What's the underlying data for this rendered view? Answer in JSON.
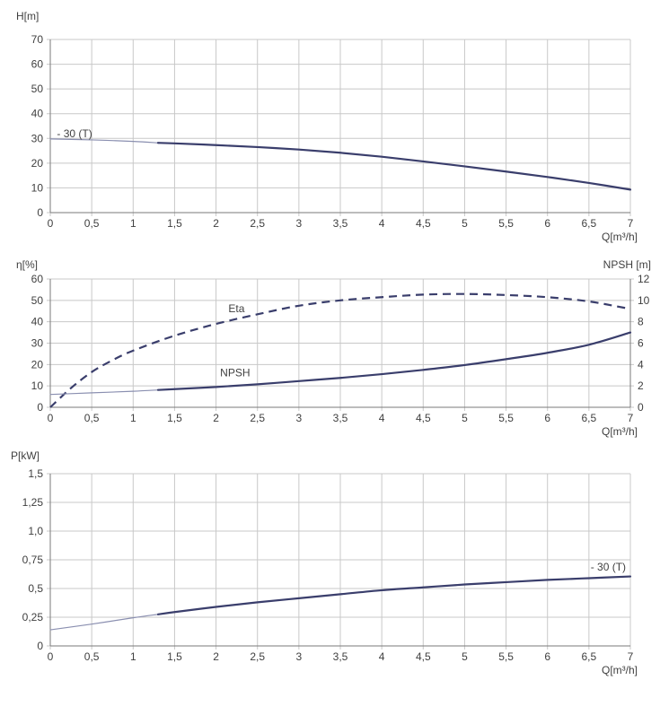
{
  "chart_data": [
    {
      "type": "line",
      "xlabel": "Q[m³/h]",
      "ylabel": "H[m]",
      "xlim": [
        0,
        7
      ],
      "ylim": [
        0,
        70
      ],
      "xticks": [
        "0",
        "0,5",
        "1",
        "1,5",
        "2",
        "2,5",
        "3",
        "3,5",
        "4",
        "4,5",
        "5",
        "5,5",
        "6",
        "6,5",
        "7"
      ],
      "yticks": [
        "0",
        "10",
        "20",
        "30",
        "40",
        "50",
        "60",
        "70"
      ],
      "grid": true,
      "annotations": [
        {
          "text": "- 30 (T)",
          "x": 0.08,
          "y": 30.5
        }
      ],
      "series": [
        {
          "style": "solid-thin",
          "color": "#8a8fb0",
          "x": [
            0,
            0.5,
            1,
            1.3
          ],
          "y": [
            29.8,
            29.4,
            28.8,
            28.2
          ]
        },
        {
          "style": "solid",
          "color": "#3a3e6c",
          "x": [
            1.3,
            1.5,
            2,
            2.5,
            3,
            3.5,
            4,
            4.5,
            5,
            5.5,
            6,
            6.5,
            7
          ],
          "y": [
            28.2,
            28.0,
            27.3,
            26.5,
            25.5,
            24.2,
            22.6,
            20.7,
            18.7,
            16.6,
            14.4,
            12.0,
            9.3
          ]
        }
      ]
    },
    {
      "type": "line",
      "xlabel": "Q[m³/h]",
      "ylabel": "η[%]",
      "y2label": "NPSH [m]",
      "xlim": [
        0,
        7
      ],
      "ylim": [
        0,
        60
      ],
      "y2lim": [
        0,
        12
      ],
      "xticks": [
        "0",
        "0,5",
        "1",
        "1,5",
        "2",
        "2,5",
        "3",
        "3,5",
        "4",
        "4,5",
        "5",
        "5,5",
        "6",
        "6,5",
        "7"
      ],
      "yticks": [
        "0",
        "10",
        "20",
        "30",
        "40",
        "50",
        "60"
      ],
      "y2ticks": [
        "0",
        "2",
        "4",
        "6",
        "8",
        "10",
        "12"
      ],
      "grid": true,
      "annotations": [
        {
          "text": "Eta",
          "x": 2.15,
          "y": 44.5
        },
        {
          "text": "NPSH",
          "x": 2.05,
          "y": 14.5
        }
      ],
      "series": [
        {
          "name": "Eta",
          "axis": "left",
          "style": "dashed",
          "color": "#3a3e6c",
          "x": [
            0,
            0.25,
            0.5,
            0.75,
            1,
            1.5,
            2,
            2.5,
            3,
            3.5,
            4,
            4.5,
            5,
            5.5,
            6,
            6.5,
            7
          ],
          "y": [
            0,
            9,
            16.5,
            22,
            26.5,
            33.5,
            39,
            43.5,
            47.5,
            50,
            51.5,
            52.7,
            53,
            52.5,
            51.5,
            49.5,
            46
          ]
        },
        {
          "name": "NPSH",
          "axis": "right",
          "style": "solid-thin",
          "color": "#8a8fb0",
          "x": [
            0,
            0.5,
            1,
            1.3
          ],
          "y": [
            1.2,
            1.35,
            1.5,
            1.62
          ]
        },
        {
          "name": "NPSH",
          "axis": "right",
          "style": "solid",
          "color": "#3a3e6c",
          "x": [
            1.3,
            1.5,
            2,
            2.5,
            3,
            3.5,
            4,
            4.5,
            5,
            5.5,
            6,
            6.5,
            7
          ],
          "y": [
            1.62,
            1.7,
            1.9,
            2.15,
            2.45,
            2.75,
            3.1,
            3.5,
            3.95,
            4.5,
            5.1,
            5.85,
            7.0
          ]
        }
      ]
    },
    {
      "type": "line",
      "xlabel": "Q[m³/h]",
      "ylabel": "P[kW]",
      "xlim": [
        0,
        7
      ],
      "ylim": [
        0,
        1.5
      ],
      "xticks": [
        "0",
        "0,5",
        "1",
        "1,5",
        "2",
        "2,5",
        "3",
        "3,5",
        "4",
        "4,5",
        "5",
        "5,5",
        "6",
        "6,5",
        "7"
      ],
      "yticks": [
        "0",
        "0,25",
        "0,5",
        "0,75",
        "1,0",
        "1,25",
        "1,5"
      ],
      "grid": true,
      "annotations": [
        {
          "text": "- 30 (T)",
          "x": 6.52,
          "y": 0.655
        }
      ],
      "series": [
        {
          "style": "solid-thin",
          "color": "#8a8fb0",
          "x": [
            0,
            0.5,
            1,
            1.3
          ],
          "y": [
            0.14,
            0.19,
            0.245,
            0.275
          ]
        },
        {
          "style": "solid",
          "color": "#3a3e6c",
          "x": [
            1.3,
            1.5,
            2,
            2.5,
            3,
            3.5,
            4,
            4.5,
            5,
            5.5,
            6,
            6.5,
            7
          ],
          "y": [
            0.275,
            0.295,
            0.34,
            0.38,
            0.415,
            0.45,
            0.485,
            0.51,
            0.535,
            0.555,
            0.575,
            0.59,
            0.605
          ]
        }
      ]
    }
  ]
}
